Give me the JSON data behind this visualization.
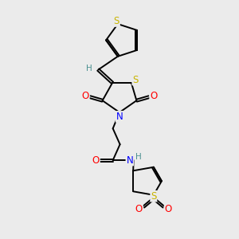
{
  "bg_color": "#ebebeb",
  "atom_colors": {
    "S": "#c8b400",
    "N": "#0000ff",
    "O": "#ff0000",
    "C": "#000000",
    "H": "#4a9090"
  },
  "bond_color": "#000000",
  "bond_width": 1.4,
  "font_size": 8.5
}
